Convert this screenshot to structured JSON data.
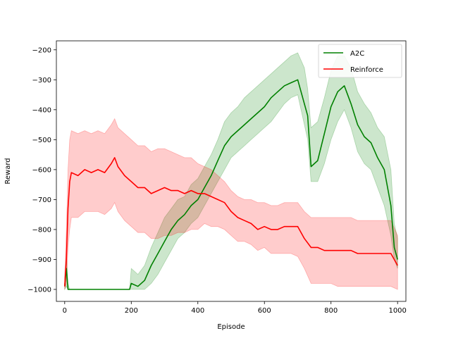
{
  "chart_data": {
    "type": "line",
    "title": "",
    "xlabel": "Episode",
    "ylabel": "Reward",
    "xlim": [
      -25,
      1025
    ],
    "ylim": [
      -1040,
      -170
    ],
    "xticks": [
      0,
      200,
      400,
      600,
      800,
      1000
    ],
    "yticks": [
      -1000,
      -900,
      -800,
      -700,
      -600,
      -500,
      -400,
      -300,
      -200
    ],
    "ytick_labels": [
      "−1000",
      "−900",
      "−800",
      "−700",
      "−600",
      "−500",
      "−400",
      "−300",
      "−200"
    ],
    "grid": false,
    "legend_position": "top-right",
    "series": [
      {
        "name": "A2C",
        "color": "#008000",
        "band_color": "#008000",
        "x": [
          0,
          5,
          10,
          15,
          20,
          60,
          100,
          150,
          195,
          200,
          220,
          240,
          260,
          280,
          300,
          320,
          340,
          360,
          380,
          400,
          420,
          440,
          460,
          480,
          500,
          520,
          540,
          560,
          580,
          600,
          620,
          640,
          660,
          680,
          700,
          720,
          730,
          740,
          760,
          780,
          800,
          820,
          840,
          860,
          880,
          900,
          920,
          940,
          960,
          980,
          990,
          1000
        ],
        "values": [
          -990,
          -930,
          -1000,
          -1000,
          -1000,
          -1000,
          -1000,
          -1000,
          -1000,
          -980,
          -990,
          -970,
          -920,
          -880,
          -840,
          -800,
          -770,
          -750,
          -720,
          -700,
          -660,
          -620,
          -570,
          -520,
          -490,
          -470,
          -450,
          -430,
          -410,
          -390,
          -360,
          -340,
          -320,
          -310,
          -300,
          -380,
          -420,
          -590,
          -570,
          -480,
          -390,
          -340,
          -320,
          -380,
          -450,
          -490,
          -510,
          -560,
          -600,
          -720,
          -860,
          -900
        ],
        "band_low": [
          -1000,
          -990,
          -1000,
          -1000,
          -1000,
          -1000,
          -1000,
          -1000,
          -1000,
          -1000,
          -1000,
          -1000,
          -980,
          -950,
          -910,
          -870,
          -830,
          -810,
          -780,
          -760,
          -720,
          -680,
          -640,
          -600,
          -560,
          -540,
          -520,
          -500,
          -480,
          -460,
          -440,
          -410,
          -380,
          -360,
          -350,
          -450,
          -500,
          -640,
          -640,
          -580,
          -500,
          -440,
          -400,
          -460,
          -540,
          -580,
          -600,
          -660,
          -720,
          -820,
          -900,
          -930
        ],
        "band_high": [
          -960,
          -880,
          -980,
          -1000,
          -1000,
          -1000,
          -1000,
          -1000,
          -1000,
          -930,
          -950,
          -920,
          -860,
          -810,
          -760,
          -730,
          -700,
          -690,
          -650,
          -630,
          -590,
          -550,
          -500,
          -440,
          -410,
          -390,
          -360,
          -340,
          -320,
          -300,
          -280,
          -260,
          -240,
          -220,
          -210,
          -260,
          -330,
          -460,
          -440,
          -360,
          -270,
          -220,
          -220,
          -260,
          -340,
          -380,
          -410,
          -460,
          -490,
          -600,
          -780,
          -830
        ]
      },
      {
        "name": "Reinforce",
        "color": "#ff0000",
        "band_color": "#ff0000",
        "x": [
          0,
          5,
          10,
          15,
          20,
          40,
          60,
          80,
          100,
          120,
          140,
          150,
          160,
          180,
          200,
          220,
          240,
          260,
          280,
          300,
          320,
          340,
          360,
          380,
          400,
          420,
          440,
          460,
          480,
          500,
          520,
          540,
          560,
          580,
          600,
          620,
          640,
          660,
          680,
          700,
          720,
          740,
          760,
          780,
          800,
          820,
          840,
          860,
          880,
          900,
          920,
          940,
          960,
          980,
          1000
        ],
        "values": [
          -990,
          -900,
          -730,
          -640,
          -610,
          -620,
          -600,
          -610,
          -600,
          -610,
          -580,
          -560,
          -590,
          -620,
          -640,
          -660,
          -660,
          -680,
          -670,
          -660,
          -670,
          -670,
          -680,
          -670,
          -680,
          -680,
          -690,
          -700,
          -710,
          -740,
          -760,
          -770,
          -780,
          -800,
          -790,
          -800,
          -800,
          -790,
          -790,
          -790,
          -830,
          -860,
          -860,
          -870,
          -870,
          -870,
          -870,
          -870,
          -880,
          -880,
          -880,
          -880,
          -880,
          -880,
          -920
        ],
        "band_low": [
          -1000,
          -980,
          -860,
          -800,
          -760,
          -760,
          -740,
          -740,
          -740,
          -750,
          -730,
          -710,
          -740,
          -770,
          -790,
          -810,
          -810,
          -830,
          -830,
          -820,
          -820,
          -810,
          -810,
          -800,
          -800,
          -780,
          -790,
          -790,
          -800,
          -820,
          -840,
          -840,
          -850,
          -870,
          -860,
          -880,
          -880,
          -880,
          -880,
          -890,
          -930,
          -980,
          -980,
          -980,
          -980,
          -990,
          -990,
          -990,
          -990,
          -990,
          -990,
          -990,
          -990,
          -990,
          -1000
        ],
        "band_high": [
          -960,
          -800,
          -600,
          -500,
          -470,
          -480,
          -470,
          -480,
          -470,
          -480,
          -450,
          -430,
          -460,
          -480,
          -500,
          -520,
          -520,
          -540,
          -530,
          -530,
          -540,
          -550,
          -560,
          -560,
          -580,
          -590,
          -600,
          -620,
          -640,
          -670,
          -690,
          -700,
          -700,
          -710,
          -710,
          -720,
          -720,
          -710,
          -710,
          -710,
          -740,
          -760,
          -760,
          -760,
          -760,
          -760,
          -760,
          -760,
          -770,
          -770,
          -770,
          -770,
          -770,
          -770,
          -820
        ]
      }
    ]
  }
}
